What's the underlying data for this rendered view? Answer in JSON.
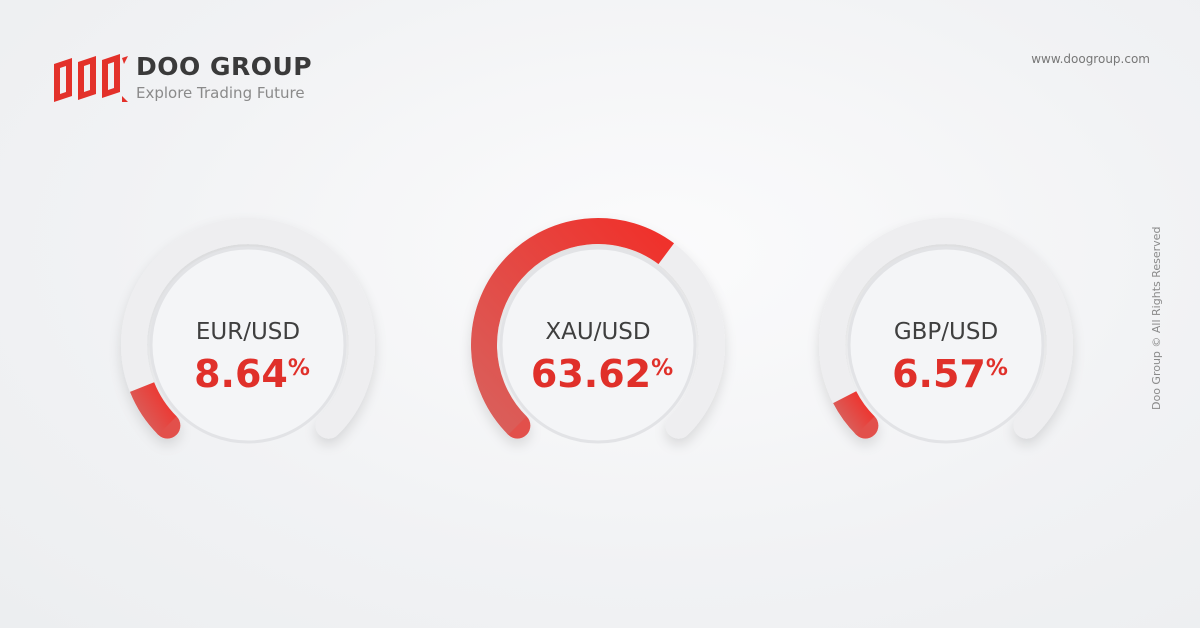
{
  "brand": {
    "name": "DOO GROUP",
    "tagline": "Explore Trading Future",
    "url": "www.doogroup.com",
    "copyright": "Doo Group © All Rights Reserved"
  },
  "colors": {
    "accent": "#e8302a",
    "track": "#ececee",
    "text": "#3f3f3f"
  },
  "chart_data": {
    "type": "gauge",
    "range": [
      0,
      100
    ],
    "unit": "%",
    "items": [
      {
        "label": "EUR/USD",
        "value": 8.64,
        "display": "8.64",
        "suffix": "%"
      },
      {
        "label": "XAU/USD",
        "value": 63.62,
        "display": "63.62",
        "suffix": "%"
      },
      {
        "label": "GBP/USD",
        "value": 6.57,
        "display": "6.57",
        "suffix": "%"
      }
    ]
  }
}
